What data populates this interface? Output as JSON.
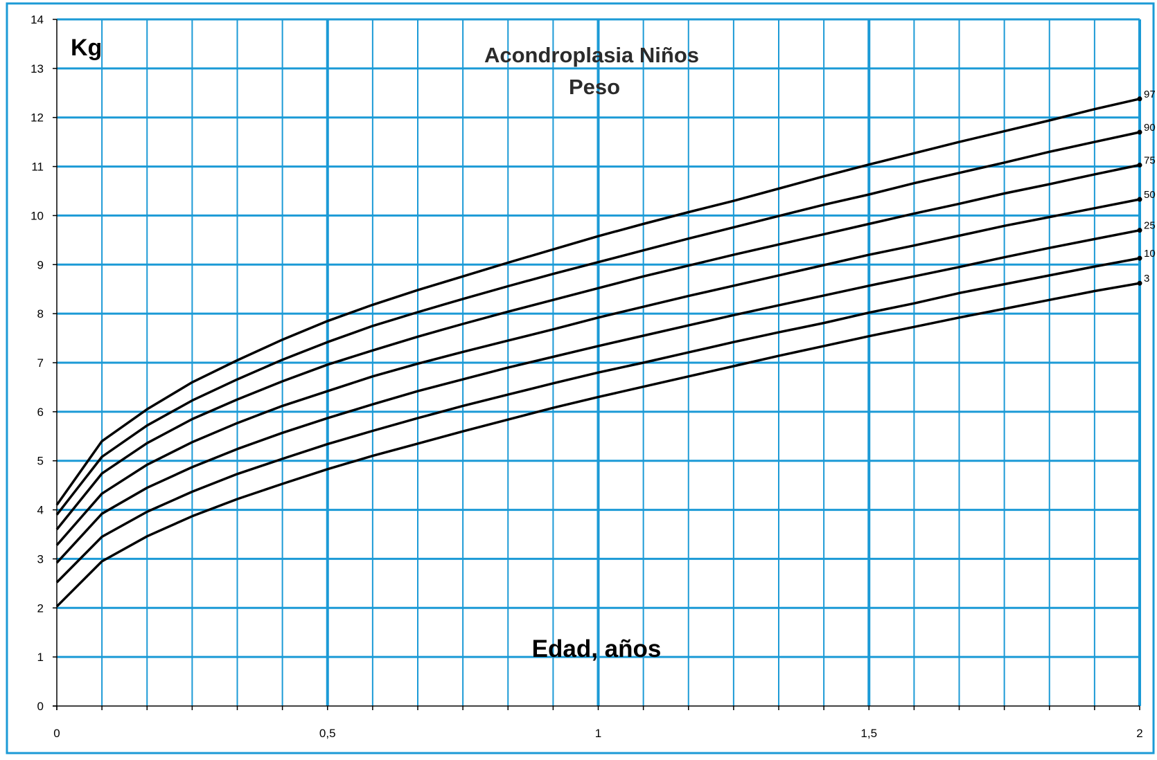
{
  "chart_data": {
    "type": "line",
    "title": "Acondroplasia Niños",
    "subtitle": "Peso",
    "ylabel": "Kg",
    "xlabel": "Edad, años",
    "xlim": [
      0,
      2
    ],
    "ylim": [
      0,
      14
    ],
    "x_ticks": [
      "0",
      "0,5",
      "1",
      "1,5",
      "2"
    ],
    "y_ticks": [
      "0",
      "1",
      "2",
      "3",
      "4",
      "5",
      "6",
      "7",
      "8",
      "9",
      "10",
      "11",
      "12",
      "13",
      "14"
    ],
    "grid": true,
    "grid_color": "#1b9ad6",
    "line_color": "#000000",
    "x": [
      0,
      0.0833,
      0.1667,
      0.25,
      0.3333,
      0.4167,
      0.5,
      0.5833,
      0.6667,
      0.75,
      0.8333,
      0.9167,
      1,
      1.0833,
      1.1667,
      1.25,
      1.3333,
      1.4167,
      1.5,
      1.5833,
      1.6667,
      1.75,
      1.8333,
      1.9167,
      2
    ],
    "series": [
      {
        "name": "97",
        "values": [
          4.1,
          5.4,
          6.05,
          6.6,
          7.05,
          7.47,
          7.85,
          8.18,
          8.48,
          8.76,
          9.04,
          9.31,
          9.58,
          9.83,
          10.07,
          10.3,
          10.55,
          10.8,
          11.04,
          11.27,
          11.5,
          11.72,
          11.94,
          12.17,
          12.38
        ]
      },
      {
        "name": "90",
        "values": [
          3.9,
          5.08,
          5.72,
          6.23,
          6.66,
          7.06,
          7.42,
          7.75,
          8.03,
          8.3,
          8.56,
          8.81,
          9.05,
          9.29,
          9.53,
          9.76,
          9.99,
          10.22,
          10.43,
          10.66,
          10.87,
          11.08,
          11.3,
          11.5,
          11.7
        ]
      },
      {
        "name": "75",
        "values": [
          3.6,
          4.74,
          5.36,
          5.85,
          6.25,
          6.62,
          6.96,
          7.25,
          7.53,
          7.79,
          8.04,
          8.28,
          8.52,
          8.76,
          8.98,
          9.2,
          9.41,
          9.62,
          9.83,
          10.04,
          10.24,
          10.45,
          10.64,
          10.84,
          11.03
        ]
      },
      {
        "name": "50",
        "values": [
          3.28,
          4.33,
          4.92,
          5.38,
          5.77,
          6.12,
          6.42,
          6.72,
          6.98,
          7.22,
          7.45,
          7.68,
          7.92,
          8.14,
          8.36,
          8.57,
          8.78,
          8.99,
          9.2,
          9.39,
          9.59,
          9.79,
          9.97,
          10.15,
          10.33
        ]
      },
      {
        "name": "25",
        "values": [
          2.92,
          3.92,
          4.45,
          4.87,
          5.24,
          5.57,
          5.87,
          6.15,
          6.42,
          6.66,
          6.9,
          7.12,
          7.34,
          7.55,
          7.76,
          7.97,
          8.17,
          8.37,
          8.57,
          8.76,
          8.95,
          9.15,
          9.34,
          9.52,
          9.7
        ]
      },
      {
        "name": "10",
        "values": [
          2.52,
          3.45,
          3.96,
          4.37,
          4.73,
          5.04,
          5.34,
          5.61,
          5.87,
          6.12,
          6.35,
          6.58,
          6.8,
          7.0,
          7.21,
          7.42,
          7.62,
          7.81,
          8.02,
          8.21,
          8.42,
          8.6,
          8.78,
          8.96,
          9.13
        ]
      },
      {
        "name": "3",
        "values": [
          2.03,
          2.95,
          3.46,
          3.87,
          4.22,
          4.53,
          4.83,
          5.1,
          5.35,
          5.6,
          5.84,
          6.08,
          6.3,
          6.51,
          6.72,
          6.93,
          7.14,
          7.34,
          7.54,
          7.73,
          7.92,
          8.1,
          8.28,
          8.46,
          8.62
        ]
      }
    ]
  }
}
